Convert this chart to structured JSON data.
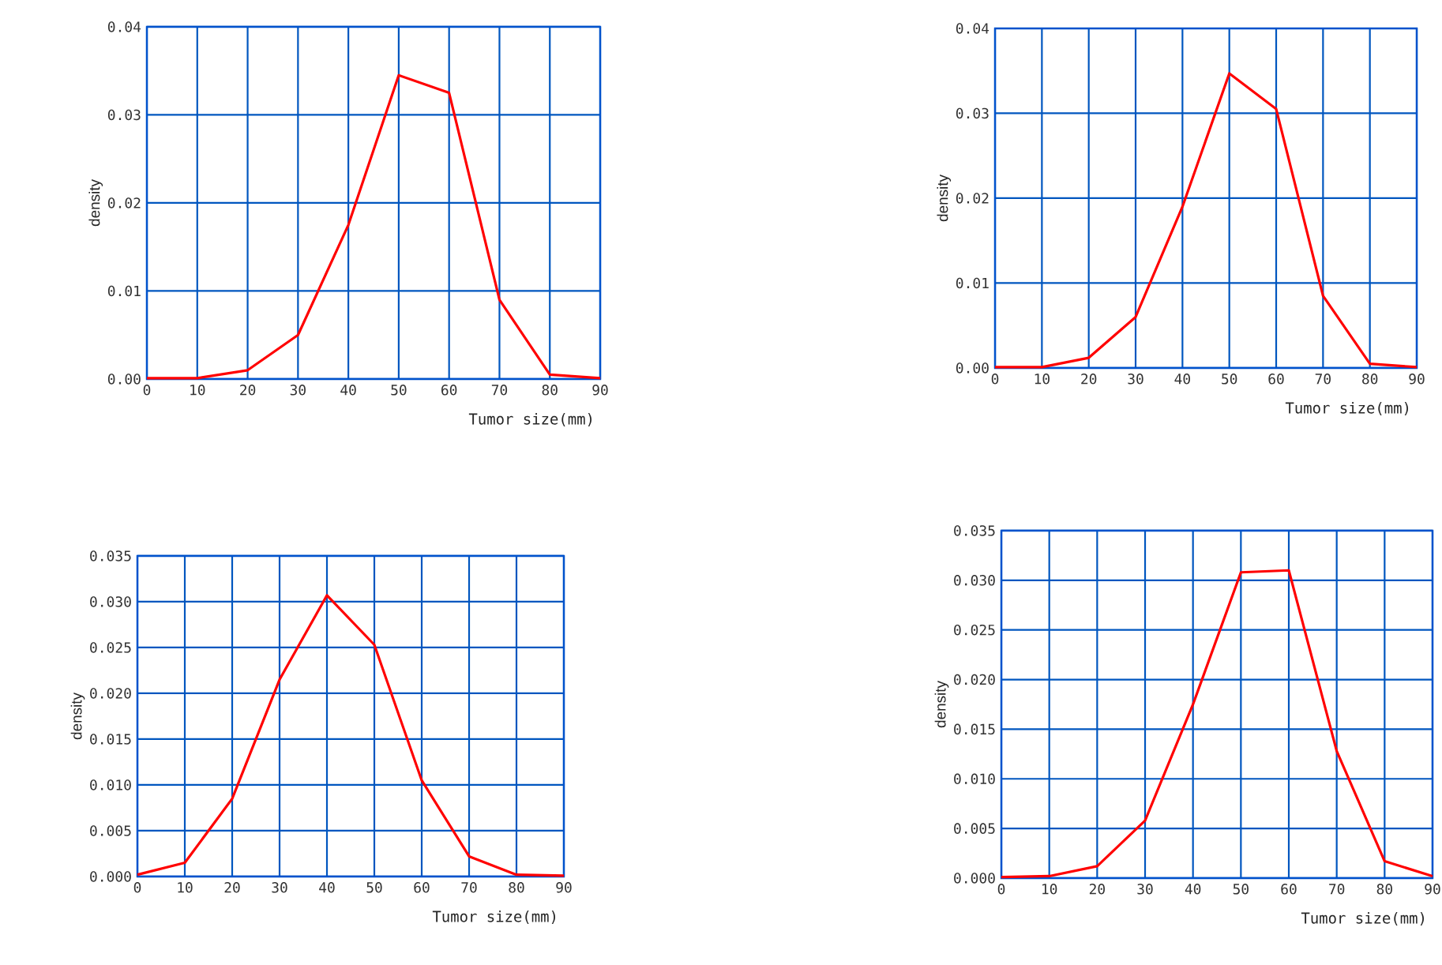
{
  "chart_data": [
    {
      "type": "line",
      "xlabel": "Tumor size(mm)",
      "ylabel": "density",
      "x": [
        0,
        10,
        20,
        30,
        40,
        50,
        60,
        70,
        80,
        90
      ],
      "xlim": [
        0,
        90
      ],
      "xticks": [
        0,
        10,
        20,
        30,
        40,
        50,
        60,
        70,
        80,
        90
      ],
      "ylim": [
        0,
        0.04
      ],
      "yticks": [
        {
          "value": 0,
          "label": "0.00"
        },
        {
          "value": 0.01,
          "label": "0.01"
        },
        {
          "value": 0.02,
          "label": "0.02"
        },
        {
          "value": 0.03,
          "label": "0.03"
        },
        {
          "value": 0.04,
          "label": "0.04"
        }
      ],
      "grid": true,
      "series": [
        {
          "color": "#ff0000",
          "values": [
            0.0001,
            0.0001,
            0.001,
            0.005,
            0.0175,
            0.0345,
            0.0325,
            0.009,
            0.0005,
            0.0001
          ]
        }
      ]
    },
    {
      "type": "line",
      "xlabel": "Tumor size(mm)",
      "ylabel": "density",
      "x": [
        0,
        10,
        20,
        30,
        40,
        50,
        60,
        70,
        80,
        90
      ],
      "xlim": [
        0,
        90
      ],
      "xticks": [
        0,
        10,
        20,
        30,
        40,
        50,
        60,
        70,
        80,
        90
      ],
      "ylim": [
        0,
        0.04
      ],
      "yticks": [
        {
          "value": 0,
          "label": "0.00"
        },
        {
          "value": 0.01,
          "label": "0.01"
        },
        {
          "value": 0.02,
          "label": "0.02"
        },
        {
          "value": 0.03,
          "label": "0.03"
        },
        {
          "value": 0.04,
          "label": "0.04"
        }
      ],
      "grid": true,
      "series": [
        {
          "color": "#ff0000",
          "values": [
            0.0001,
            0.0001,
            0.0012,
            0.006,
            0.019,
            0.0347,
            0.0305,
            0.0085,
            0.0005,
            0.0001
          ]
        }
      ]
    },
    {
      "type": "line",
      "xlabel": "Tumor size(mm)",
      "ylabel": "density",
      "x": [
        0,
        10,
        20,
        30,
        40,
        50,
        60,
        70,
        80,
        90
      ],
      "xlim": [
        0,
        90
      ],
      "xticks": [
        0,
        10,
        20,
        30,
        40,
        50,
        60,
        70,
        80,
        90
      ],
      "ylim": [
        0,
        0.035
      ],
      "yticks": [
        {
          "value": 0,
          "label": "0.000"
        },
        {
          "value": 0.005,
          "label": "0.005"
        },
        {
          "value": 0.01,
          "label": "0.010"
        },
        {
          "value": 0.015,
          "label": "0.015"
        },
        {
          "value": 0.02,
          "label": "0.020"
        },
        {
          "value": 0.025,
          "label": "0.025"
        },
        {
          "value": 0.03,
          "label": "0.030"
        },
        {
          "value": 0.035,
          "label": "0.035"
        }
      ],
      "grid": true,
      "series": [
        {
          "color": "#ff0000",
          "values": [
            0.0002,
            0.0015,
            0.0085,
            0.0215,
            0.0307,
            0.0253,
            0.0105,
            0.0022,
            0.0002,
            0.0001
          ]
        }
      ]
    },
    {
      "type": "line",
      "xlabel": "Tumor size(mm)",
      "ylabel": "density",
      "x": [
        0,
        10,
        20,
        30,
        40,
        50,
        60,
        70,
        80,
        90
      ],
      "xlim": [
        0,
        90
      ],
      "xticks": [
        0,
        10,
        20,
        30,
        40,
        50,
        60,
        70,
        80,
        90
      ],
      "ylim": [
        0,
        0.035
      ],
      "yticks": [
        {
          "value": 0,
          "label": "0.000"
        },
        {
          "value": 0.005,
          "label": "0.005"
        },
        {
          "value": 0.01,
          "label": "0.010"
        },
        {
          "value": 0.015,
          "label": "0.015"
        },
        {
          "value": 0.02,
          "label": "0.020"
        },
        {
          "value": 0.025,
          "label": "0.025"
        },
        {
          "value": 0.03,
          "label": "0.030"
        },
        {
          "value": 0.035,
          "label": "0.035"
        }
      ],
      "grid": true,
      "series": [
        {
          "color": "#ff0000",
          "values": [
            0.0001,
            0.0002,
            0.0012,
            0.0058,
            0.0175,
            0.0308,
            0.031,
            0.0128,
            0.0017,
            0.0002
          ]
        }
      ]
    }
  ]
}
